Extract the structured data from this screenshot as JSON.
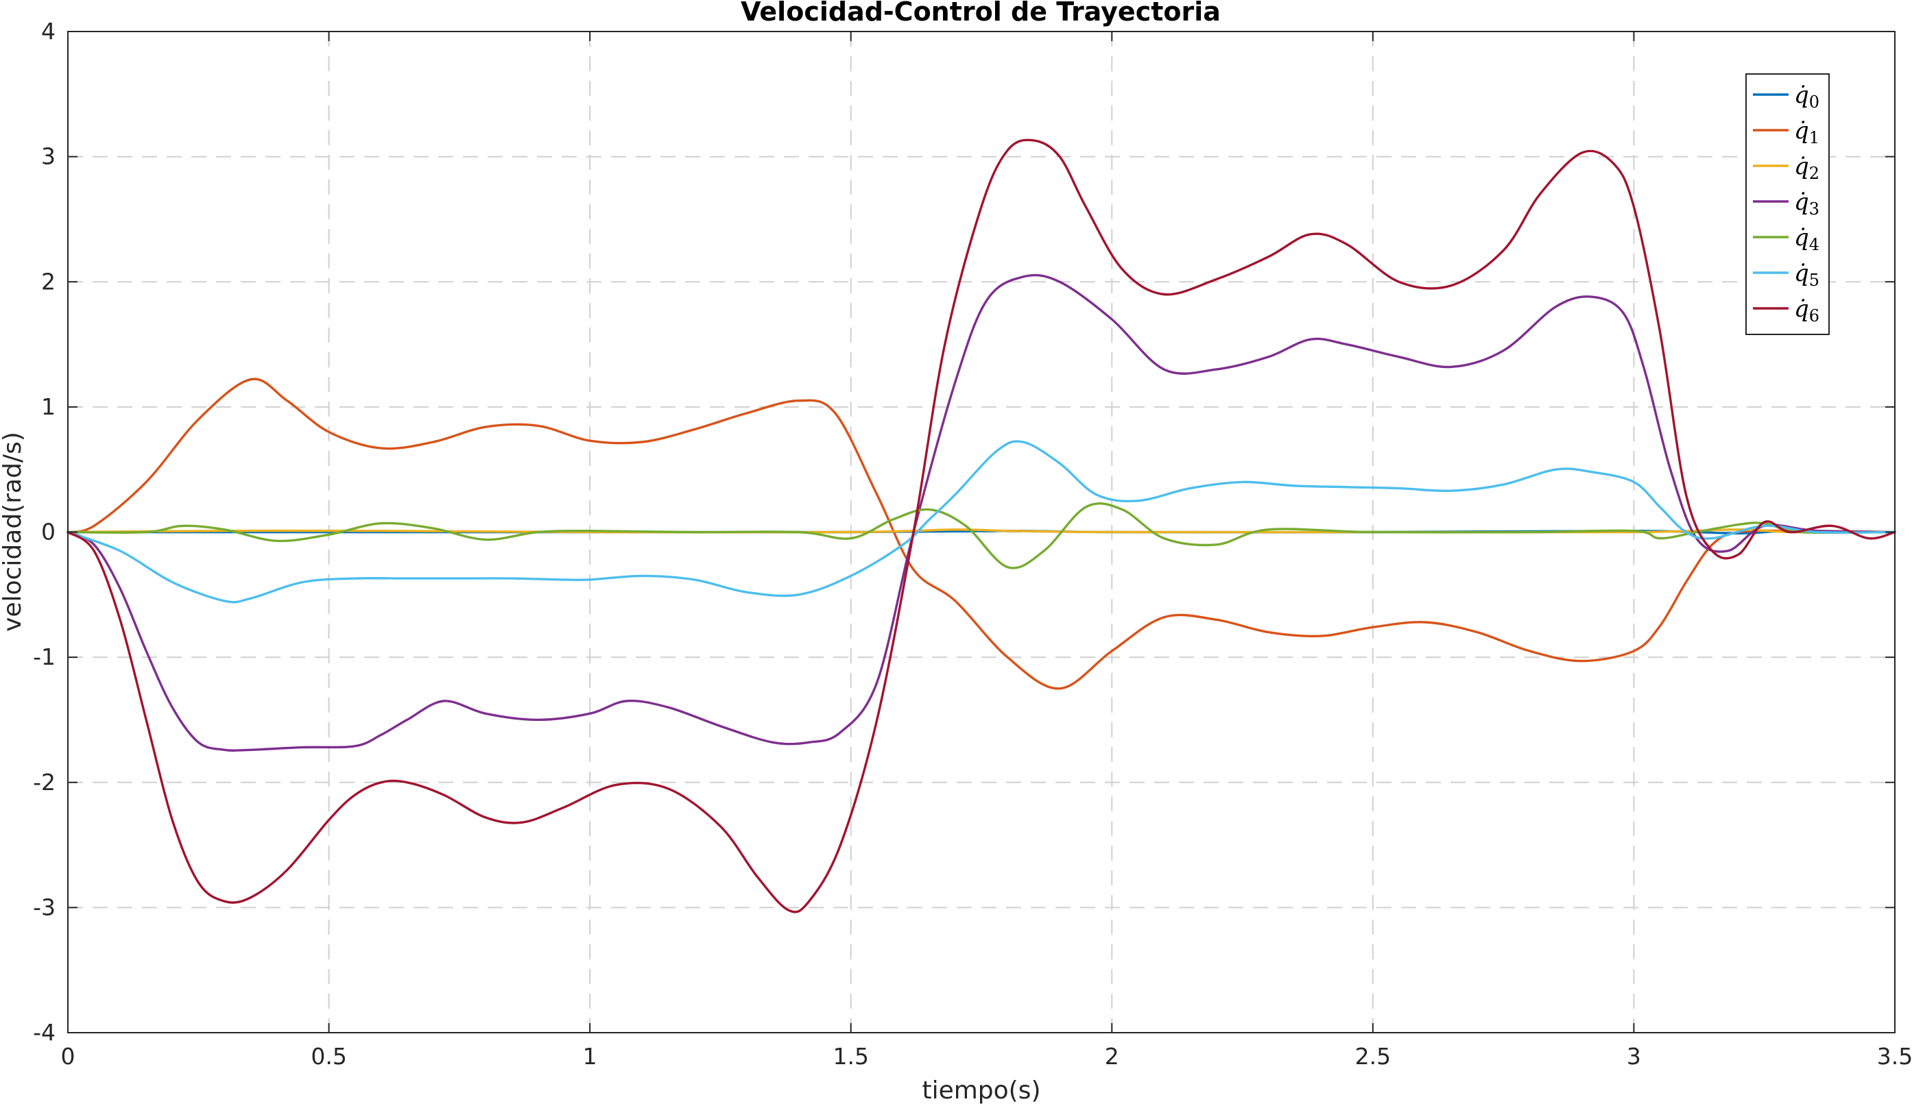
{
  "chart_data": {
    "type": "line",
    "title": "Velocidad-Control de Trayectoria",
    "xlabel": "tiempo(s)",
    "ylabel": "velocidad(rad/s)",
    "xlim": [
      0,
      3.5
    ],
    "ylim": [
      -4,
      4
    ],
    "xticks": [
      0,
      0.5,
      1,
      1.5,
      2,
      2.5,
      3,
      3.5
    ],
    "xtick_labels": [
      "0",
      "0.5",
      "1",
      "1.5",
      "2",
      "2.5",
      "3",
      "3.5"
    ],
    "yticks": [
      -4,
      -3,
      -2,
      -1,
      0,
      1,
      2,
      3,
      4
    ],
    "ytick_labels": [
      "-4",
      "-3",
      "-2",
      "-1",
      "0",
      "1",
      "2",
      "3",
      "4"
    ],
    "grid": true,
    "legend_position": "top-right",
    "series": [
      {
        "name": "q̇0",
        "legend_base": "q̇",
        "legend_sub": "0",
        "color": "#0072BD",
        "x": [
          0,
          0.5,
          1.0,
          1.5,
          1.8,
          2.0,
          2.5,
          3.0,
          3.2,
          3.3,
          3.5
        ],
        "y": [
          0,
          0,
          0,
          0,
          0.01,
          0,
          0,
          0.01,
          -0.01,
          0.01,
          0
        ]
      },
      {
        "name": "q̇1",
        "legend_base": "q̇",
        "legend_sub": "1",
        "color": "#D95319",
        "x": [
          0,
          0.05,
          0.15,
          0.25,
          0.35,
          0.42,
          0.5,
          0.6,
          0.7,
          0.8,
          0.9,
          1.0,
          1.1,
          1.2,
          1.3,
          1.4,
          1.47,
          1.55,
          1.62,
          1.7,
          1.8,
          1.9,
          2.0,
          2.1,
          2.2,
          2.3,
          2.4,
          2.5,
          2.6,
          2.7,
          2.8,
          2.9,
          3.0,
          3.05,
          3.1,
          3.15,
          3.2,
          3.3,
          3.5
        ],
        "y": [
          0,
          0.05,
          0.4,
          0.9,
          1.22,
          1.05,
          0.8,
          0.67,
          0.72,
          0.84,
          0.85,
          0.73,
          0.72,
          0.82,
          0.95,
          1.05,
          0.95,
          0.3,
          -0.3,
          -0.55,
          -1.0,
          -1.25,
          -0.95,
          -0.68,
          -0.7,
          -0.8,
          -0.83,
          -0.76,
          -0.72,
          -0.8,
          -0.95,
          -1.03,
          -0.95,
          -0.75,
          -0.4,
          -0.1,
          0.0,
          0.01,
          0
        ]
      },
      {
        "name": "q̇2",
        "legend_base": "q̇",
        "legend_sub": "2",
        "color": "#EDB120",
        "x": [
          0,
          0.3,
          0.6,
          1.0,
          1.5,
          1.7,
          1.8,
          2.0,
          2.5,
          3.0,
          3.2,
          3.3,
          3.5
        ],
        "y": [
          0,
          0.01,
          0.01,
          0,
          0,
          0.02,
          0.01,
          0,
          0,
          0,
          0.02,
          0.0,
          0
        ]
      },
      {
        "name": "q̇3",
        "legend_base": "q̇",
        "legend_sub": "3",
        "color": "#7E2F8E",
        "x": [
          0,
          0.05,
          0.1,
          0.15,
          0.2,
          0.25,
          0.3,
          0.35,
          0.45,
          0.55,
          0.6,
          0.65,
          0.72,
          0.8,
          0.9,
          1.0,
          1.07,
          1.15,
          1.25,
          1.35,
          1.42,
          1.48,
          1.55,
          1.62,
          1.7,
          1.76,
          1.83,
          1.9,
          2.0,
          2.1,
          2.2,
          2.3,
          2.38,
          2.45,
          2.55,
          2.65,
          2.75,
          2.85,
          2.92,
          2.98,
          3.02,
          3.07,
          3.12,
          3.18,
          3.25,
          3.35,
          3.5
        ],
        "y": [
          0,
          -0.1,
          -0.45,
          -0.95,
          -1.4,
          -1.68,
          -1.74,
          -1.74,
          -1.72,
          -1.71,
          -1.62,
          -1.5,
          -1.35,
          -1.45,
          -1.5,
          -1.45,
          -1.35,
          -1.4,
          -1.55,
          -1.68,
          -1.68,
          -1.6,
          -1.2,
          0.0,
          1.2,
          1.85,
          2.04,
          2.0,
          1.7,
          1.3,
          1.3,
          1.4,
          1.54,
          1.5,
          1.4,
          1.32,
          1.45,
          1.8,
          1.88,
          1.75,
          1.3,
          0.5,
          -0.05,
          -0.15,
          0.05,
          0.01,
          0
        ]
      },
      {
        "name": "q̇4",
        "legend_base": "q̇",
        "legend_sub": "4",
        "color": "#77AC30",
        "x": [
          0,
          0.15,
          0.22,
          0.3,
          0.4,
          0.5,
          0.6,
          0.7,
          0.8,
          0.9,
          1.0,
          1.2,
          1.4,
          1.5,
          1.58,
          1.65,
          1.72,
          1.8,
          1.87,
          1.95,
          2.02,
          2.1,
          2.2,
          2.3,
          2.5,
          2.8,
          3.0,
          3.05,
          3.12,
          3.2,
          3.25,
          3.32,
          3.5
        ],
        "y": [
          0,
          0.0,
          0.05,
          0.02,
          -0.07,
          -0.02,
          0.07,
          0.03,
          -0.06,
          0.0,
          0.01,
          0,
          0.0,
          -0.05,
          0.1,
          0.18,
          0.05,
          -0.28,
          -0.15,
          0.2,
          0.18,
          -0.05,
          -0.1,
          0.02,
          0.0,
          0.0,
          0.01,
          -0.05,
          0.0,
          0.06,
          0.07,
          0.0,
          0
        ]
      },
      {
        "name": "q̇5",
        "legend_base": "q̇",
        "legend_sub": "5",
        "color": "#4DBEEE",
        "x": [
          0,
          0.1,
          0.2,
          0.3,
          0.35,
          0.45,
          0.55,
          0.65,
          0.75,
          0.85,
          0.95,
          1.0,
          1.1,
          1.2,
          1.3,
          1.4,
          1.5,
          1.6,
          1.65,
          1.7,
          1.78,
          1.83,
          1.9,
          1.97,
          2.05,
          2.15,
          2.25,
          2.35,
          2.45,
          2.55,
          2.65,
          2.75,
          2.85,
          2.92,
          3.0,
          3.05,
          3.1,
          3.15,
          3.25,
          3.35,
          3.5
        ],
        "y": [
          0,
          -0.15,
          -0.4,
          -0.55,
          -0.53,
          -0.4,
          -0.37,
          -0.37,
          -0.37,
          -0.37,
          -0.38,
          -0.38,
          -0.35,
          -0.38,
          -0.48,
          -0.5,
          -0.35,
          -0.1,
          0.1,
          0.3,
          0.65,
          0.72,
          0.55,
          0.3,
          0.25,
          0.35,
          0.4,
          0.37,
          0.36,
          0.35,
          0.33,
          0.38,
          0.5,
          0.48,
          0.4,
          0.2,
          0.0,
          -0.05,
          0.05,
          0.0,
          0
        ]
      },
      {
        "name": "q̇6",
        "legend_base": "q̇",
        "legend_sub": "6",
        "color": "#A2142F",
        "x": [
          0,
          0.05,
          0.1,
          0.15,
          0.2,
          0.25,
          0.3,
          0.35,
          0.42,
          0.5,
          0.55,
          0.6,
          0.65,
          0.72,
          0.8,
          0.87,
          0.95,
          1.05,
          1.15,
          1.25,
          1.32,
          1.38,
          1.42,
          1.48,
          1.55,
          1.62,
          1.68,
          1.75,
          1.8,
          1.85,
          1.9,
          1.95,
          2.02,
          2.1,
          2.2,
          2.3,
          2.38,
          2.45,
          2.55,
          2.65,
          2.75,
          2.82,
          2.9,
          2.96,
          3.0,
          3.05,
          3.1,
          3.15,
          3.2,
          3.25,
          3.3,
          3.38,
          3.45,
          3.5
        ],
        "y": [
          0,
          -0.15,
          -0.7,
          -1.5,
          -2.3,
          -2.8,
          -2.95,
          -2.92,
          -2.7,
          -2.3,
          -2.1,
          -2.0,
          -2.0,
          -2.1,
          -2.28,
          -2.32,
          -2.2,
          -2.02,
          -2.05,
          -2.35,
          -2.75,
          -3.02,
          -2.95,
          -2.5,
          -1.5,
          0.0,
          1.5,
          2.6,
          3.05,
          3.13,
          3.0,
          2.6,
          2.1,
          1.9,
          2.02,
          2.2,
          2.38,
          2.3,
          2.0,
          1.97,
          2.25,
          2.7,
          3.03,
          2.95,
          2.6,
          1.6,
          0.3,
          -0.15,
          -0.18,
          0.08,
          0.0,
          0.05,
          -0.05,
          0
        ]
      }
    ]
  }
}
